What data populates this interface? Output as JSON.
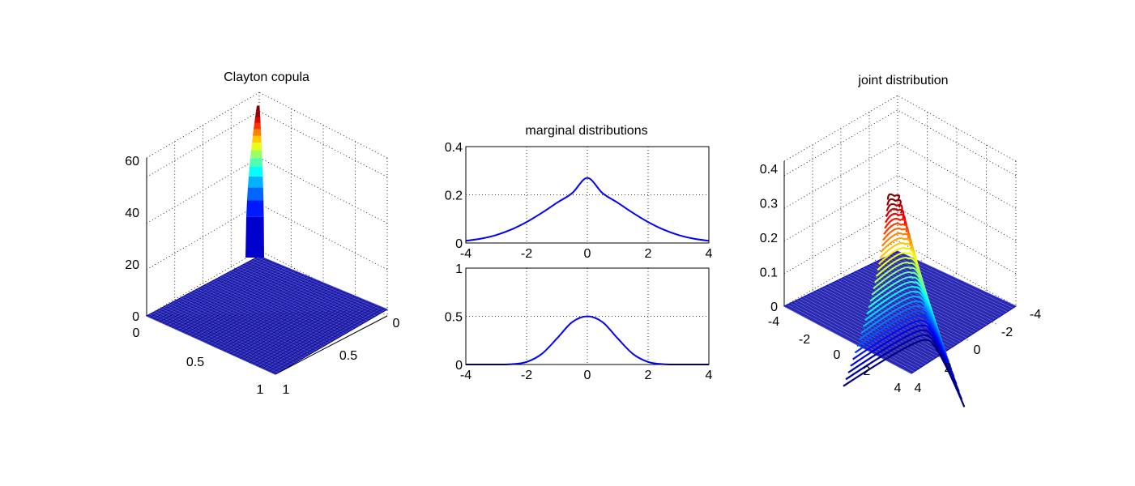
{
  "chart_data": [
    {
      "type": "surface",
      "title": "Clayton copula",
      "xlabel": "",
      "ylabel": "",
      "zlabel": "",
      "x_ticks": [
        "0",
        "0.5",
        "1"
      ],
      "y_ticks": [
        "0",
        "0.5",
        "1"
      ],
      "z_ticks": [
        "0",
        "20",
        "40",
        "60"
      ],
      "xlim": [
        0,
        1
      ],
      "ylim": [
        0,
        1
      ],
      "zlim": [
        0,
        70
      ],
      "peak": {
        "x": 0,
        "y": 0,
        "z": 67
      },
      "colormap": "jet",
      "grid": true
    },
    {
      "type": "line",
      "title": "marginal distributions",
      "xlabel": "",
      "ylabel": "",
      "x_ticks": [
        "-4",
        "-2",
        "0",
        "2",
        "4"
      ],
      "y_ticks": [
        "0",
        "0.2",
        "0.4"
      ],
      "xlim": [
        -4,
        4
      ],
      "ylim": [
        0,
        0.4
      ],
      "x": [
        -4,
        -3.5,
        -3,
        -2.5,
        -2,
        -1.5,
        -1,
        -0.5,
        0,
        0.5,
        1,
        1.5,
        2,
        2.5,
        3,
        3.5,
        4
      ],
      "series": [
        {
          "values": [
            0.009,
            0.018,
            0.033,
            0.056,
            0.087,
            0.125,
            0.167,
            0.207,
            0.27,
            0.207,
            0.167,
            0.125,
            0.087,
            0.056,
            0.033,
            0.018,
            0.009
          ]
        }
      ],
      "color": "#0000ff",
      "grid": true
    },
    {
      "type": "line",
      "title": "",
      "xlabel": "",
      "ylabel": "",
      "x_ticks": [
        "-4",
        "-2",
        "0",
        "2",
        "4"
      ],
      "y_ticks": [
        "0",
        "0.5",
        "1"
      ],
      "xlim": [
        -4,
        4
      ],
      "ylim": [
        0,
        1
      ],
      "x": [
        -4,
        -3.5,
        -3,
        -2.5,
        -2,
        -1.5,
        -1,
        -0.5,
        0,
        0.5,
        1,
        1.5,
        2,
        2.5,
        3,
        3.5,
        4
      ],
      "series": [
        {
          "values": [
            0,
            0,
            0.0002,
            0.003,
            0.027,
            0.11,
            0.27,
            0.44,
            0.5,
            0.44,
            0.27,
            0.11,
            0.027,
            0.003,
            0.0002,
            0,
            0
          ]
        }
      ],
      "color": "#0000ff",
      "grid": true
    },
    {
      "type": "surface",
      "title": "joint distribution",
      "xlabel": "",
      "ylabel": "",
      "zlabel": "",
      "x_ticks": [
        "-4",
        "-2",
        "0",
        "2",
        "4"
      ],
      "y_ticks": [
        "-4",
        "-2",
        "0",
        "2",
        "4"
      ],
      "z_ticks": [
        "0",
        "0.1",
        "0.2",
        "0.3",
        "0.4"
      ],
      "xlim": [
        -4,
        4
      ],
      "ylim": [
        -4,
        4
      ],
      "zlim": [
        0,
        0.4
      ],
      "peak": {
        "x": -0.3,
        "y": -0.3,
        "z": 0.31
      },
      "colormap": "jet",
      "grid": true
    }
  ]
}
